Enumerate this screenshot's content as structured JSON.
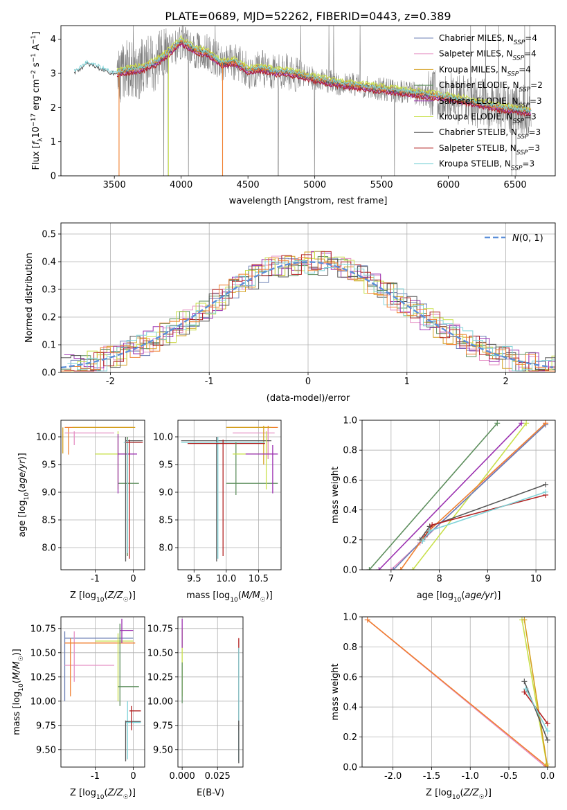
{
  "figure_title": "PLATE=0689, MJD=52262, FIBERID=0443, z=0.389",
  "colors": {
    "data": "#808080",
    "ch_miles": "#6b7fb5",
    "sa_miles": "#e58fc4",
    "kr_miles": "#d4a020",
    "ch_elodie": "#5e8f5e",
    "sa_elodie": "#9b30b0",
    "kr_elodie": "#c8e04a",
    "ch_stelib": "#555555",
    "sa_stelib": "#b22222",
    "kr_stelib": "#7fd3d8",
    "model_main": "#f08030",
    "normal": "#5b8fd9"
  },
  "chart_data": [
    {
      "id": "spectrum",
      "type": "line",
      "xlabel": "wavelength [Angstrom, rest frame]",
      "ylabel": "Flux [f_λ10^-17 erg cm^-2 s^-1 A^-1]",
      "xlim": [
        3100,
        6800
      ],
      "ylim": [
        0,
        4.4
      ],
      "xticks": [
        3500,
        4000,
        4500,
        5000,
        5500,
        6000,
        6500
      ],
      "yticks": [
        0,
        1,
        2,
        3,
        4
      ],
      "grid": false,
      "legend_placement": "right",
      "legend": [
        {
          "text": "Chabrier MILES, N_SSP=4",
          "color_key": "ch_miles"
        },
        {
          "text": "Salpeter MILES, N_SSP=4",
          "color_key": "sa_miles"
        },
        {
          "text": "Kroupa MILES, N_SSP=4",
          "color_key": "kr_miles"
        },
        {
          "text": "Chabrier ELODIE, N_SSP=2",
          "color_key": "ch_elodie"
        },
        {
          "text": "Salpeter ELODIE, N_SSP=3",
          "color_key": "sa_elodie"
        },
        {
          "text": "Kroupa ELODIE, N_SSP=3",
          "color_key": "kr_elodie"
        },
        {
          "text": "Chabrier STELIB, N_SSP=3",
          "color_key": "ch_stelib"
        },
        {
          "text": "Salpeter STELIB, N_SSP=3",
          "color_key": "sa_stelib"
        },
        {
          "text": "Kroupa STELIB, N_SSP=3",
          "color_key": "kr_stelib"
        }
      ],
      "model_curve": {
        "x": [
          3200,
          3300,
          3400,
          3500,
          3600,
          3700,
          3800,
          3900,
          4000,
          4100,
          4200,
          4300,
          4400,
          4500,
          4600,
          4700,
          4800,
          4900,
          5000,
          5200,
          5400,
          5600,
          5800,
          6000,
          6200,
          6400,
          6600
        ],
        "y": [
          3.05,
          3.3,
          3.15,
          3.0,
          3.1,
          3.15,
          3.3,
          3.6,
          3.95,
          3.7,
          3.6,
          3.3,
          3.35,
          3.1,
          3.15,
          3.05,
          3.05,
          2.95,
          2.85,
          2.7,
          2.6,
          2.5,
          2.4,
          2.3,
          2.15,
          2.0,
          1.9
        ]
      }
    },
    {
      "id": "residuals",
      "type": "line",
      "xlabel": "(data-model)/error",
      "ylabel": "Normed distribution",
      "xlim": [
        -2.5,
        2.5
      ],
      "ylim": [
        0,
        0.54
      ],
      "xticks": [
        -2,
        -1,
        0,
        1,
        2
      ],
      "yticks": [
        0.0,
        0.1,
        0.2,
        0.3,
        0.4,
        0.5
      ],
      "grid": true,
      "legend_placement": "top-right",
      "legend": [
        {
          "text": "N(0, 1)",
          "color_key": "normal"
        }
      ]
    },
    {
      "id": "age_vs_Z",
      "type": "scatter",
      "xlabel": "Z [log10(Z/Z☉)]",
      "ylabel": "age  [log10(age/yr)]",
      "xlim": [
        -1.9,
        0.3
      ],
      "ylim": [
        7.6,
        10.3
      ],
      "xticks": [
        -1,
        0
      ],
      "yticks": [
        8.0,
        8.5,
        9.0,
        9.5,
        10.0
      ],
      "grid": true
    },
    {
      "id": "age_vs_mass",
      "type": "scatter",
      "xlabel": "mass [log10(M/M☉)]",
      "xlim": [
        9.25,
        10.85
      ],
      "ylim": [
        7.6,
        10.3
      ],
      "xticks": [
        9.5,
        10.0,
        10.5
      ],
      "yticks": [
        8.0,
        8.5,
        9.0,
        9.5,
        10.0
      ],
      "grid": true
    },
    {
      "id": "weight_vs_age",
      "type": "line",
      "xlabel": "age  [log10(age/yr)]",
      "ylabel": "mass weight",
      "xlim": [
        6.4,
        10.4
      ],
      "ylim": [
        0,
        1.0
      ],
      "xticks": [
        7,
        8,
        9,
        10
      ],
      "yticks": [
        0.0,
        0.2,
        0.4,
        0.6,
        0.8,
        1.0
      ],
      "grid": true
    },
    {
      "id": "mass_vs_Z",
      "type": "scatter",
      "xlabel": "Z [log10(Z/Z☉)]",
      "ylabel": "mass [log10(M/M☉)]",
      "xlim": [
        -1.9,
        0.3
      ],
      "ylim": [
        9.32,
        10.87
      ],
      "xticks": [
        -1,
        0
      ],
      "yticks": [
        9.5,
        9.75,
        10.0,
        10.25,
        10.5,
        10.75
      ],
      "grid": true
    },
    {
      "id": "mass_vs_ebv",
      "type": "scatter",
      "xlabel": "E(B-V)",
      "xlim": [
        -0.003,
        0.043
      ],
      "ylim": [
        9.32,
        10.87
      ],
      "xticks": [
        0.0,
        0.025
      ],
      "yticks": [
        9.5,
        9.75,
        10.0,
        10.25,
        10.5,
        10.75
      ],
      "grid": true
    },
    {
      "id": "weight_vs_Z",
      "type": "line",
      "xlabel": "Z [log10(Z/Z☉)]",
      "ylabel": "mass weight",
      "xlim": [
        -2.4,
        0.1
      ],
      "ylim": [
        0,
        1.0
      ],
      "xticks": [
        -2.0,
        -1.5,
        -1.0,
        -0.5,
        0.0
      ],
      "yticks": [
        0.0,
        0.2,
        0.4,
        0.6,
        0.8,
        1.0
      ],
      "grid": true
    }
  ]
}
